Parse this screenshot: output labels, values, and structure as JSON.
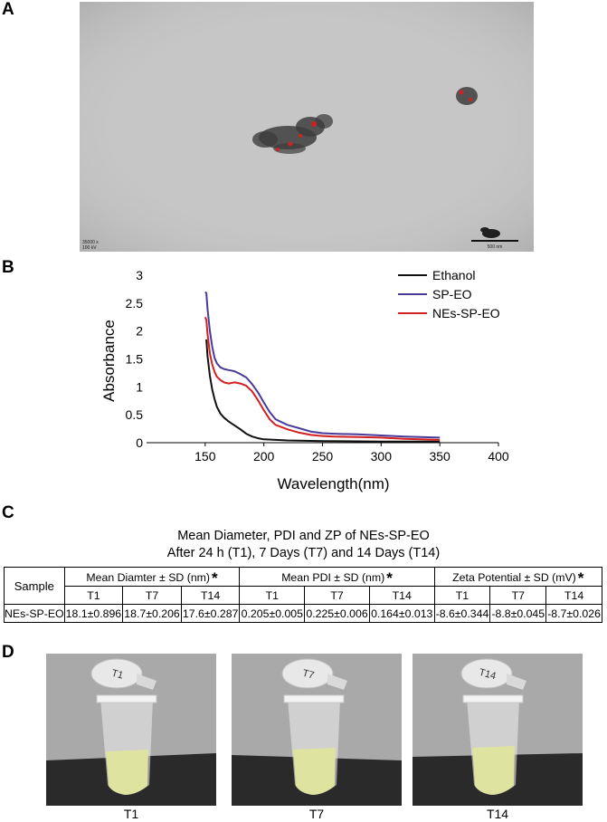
{
  "panels": {
    "a": "A",
    "b": "B",
    "c": "C",
    "d": "D"
  },
  "tem": {
    "stamp_left": [
      "35000 x",
      "100 kV"
    ],
    "scale_bar": "500 nm",
    "colors": {
      "background": "#c4c4c4",
      "particle": "#3a3a3a",
      "marker": "#d02020"
    }
  },
  "chart_data": {
    "type": "line",
    "title": "",
    "xlabel": "Wavelength(nm)",
    "ylabel": "Absorbance",
    "xlim": [
      100,
      400
    ],
    "ylim": [
      0,
      3
    ],
    "xticks": [
      150,
      200,
      250,
      300,
      350,
      400
    ],
    "yticks": [
      0,
      0.5,
      1,
      1.5,
      2,
      2.5,
      3
    ],
    "grid": false,
    "legend_position": "top-right",
    "series": [
      {
        "name": "Ethanol",
        "color": "#111111",
        "x": [
          151,
          152,
          154,
          156,
          158,
          160,
          163,
          166,
          170,
          175,
          180,
          185,
          190,
          195,
          200,
          210,
          220,
          250,
          300,
          350
        ],
        "y": [
          1.85,
          1.55,
          1.2,
          0.95,
          0.78,
          0.64,
          0.52,
          0.45,
          0.38,
          0.31,
          0.24,
          0.16,
          0.11,
          0.08,
          0.06,
          0.05,
          0.04,
          0.03,
          0.02,
          0.02
        ]
      },
      {
        "name": "SP-EO",
        "color": "#4a3a9a",
        "x": [
          150,
          151,
          152,
          154,
          156,
          158,
          160,
          163,
          166,
          170,
          175,
          180,
          185,
          190,
          195,
          200,
          205,
          210,
          220,
          230,
          240,
          250,
          260,
          280,
          300,
          320,
          350
        ],
        "y": [
          2.7,
          2.68,
          2.4,
          2.0,
          1.72,
          1.52,
          1.42,
          1.35,
          1.32,
          1.3,
          1.28,
          1.23,
          1.17,
          1.05,
          0.9,
          0.72,
          0.55,
          0.42,
          0.32,
          0.26,
          0.2,
          0.17,
          0.16,
          0.15,
          0.13,
          0.11,
          0.09
        ]
      },
      {
        "name": "NEs-SP-EO",
        "color": "#d42020",
        "x": [
          150,
          151,
          152,
          154,
          156,
          158,
          160,
          163,
          166,
          170,
          175,
          180,
          185,
          190,
          195,
          200,
          205,
          210,
          220,
          230,
          240,
          250,
          260,
          280,
          300,
          320,
          350
        ],
        "y": [
          2.25,
          2.2,
          1.95,
          1.6,
          1.4,
          1.27,
          1.18,
          1.12,
          1.08,
          1.06,
          1.08,
          1.06,
          1.02,
          0.92,
          0.76,
          0.58,
          0.42,
          0.32,
          0.24,
          0.18,
          0.14,
          0.12,
          0.11,
          0.1,
          0.09,
          0.07,
          0.05
        ]
      }
    ]
  },
  "table": {
    "title_line1": "Mean Diameter, PDI and ZP of NEs-SP-EO",
    "title_line2": "After 24 h (T1), 7 Days (T7) and 14 Days (T14)",
    "sample_header": "Sample",
    "group_headers": [
      "Mean Diamter ± SD (nm)",
      "Mean PDI ± SD (nm)",
      "Zeta Potential ± SD (mV)"
    ],
    "star": "*",
    "sub_headers": [
      "T1",
      "T7",
      "T14",
      "T1",
      "T7",
      "T14",
      "T1",
      "T7",
      "T14"
    ],
    "row": {
      "sample": "NEs-SP-EO",
      "values": [
        "18.1±0.896",
        "18.7±0.206",
        "17.6±0.287",
        "0.205±0.005",
        "0.225±0.006",
        "0.164±0.013",
        "-8.6±0.344",
        "-8.8±0.045",
        "-8.7±0.026"
      ]
    }
  },
  "photos": [
    {
      "caption": "T1",
      "tube_label": "T1"
    },
    {
      "caption": "T7",
      "tube_label": "T7"
    },
    {
      "caption": "T14",
      "tube_label": "T14"
    }
  ],
  "colors": {
    "wall": "#a8a8a8",
    "surface": "#2b2b2b",
    "liquid": "#e3e6a6"
  }
}
